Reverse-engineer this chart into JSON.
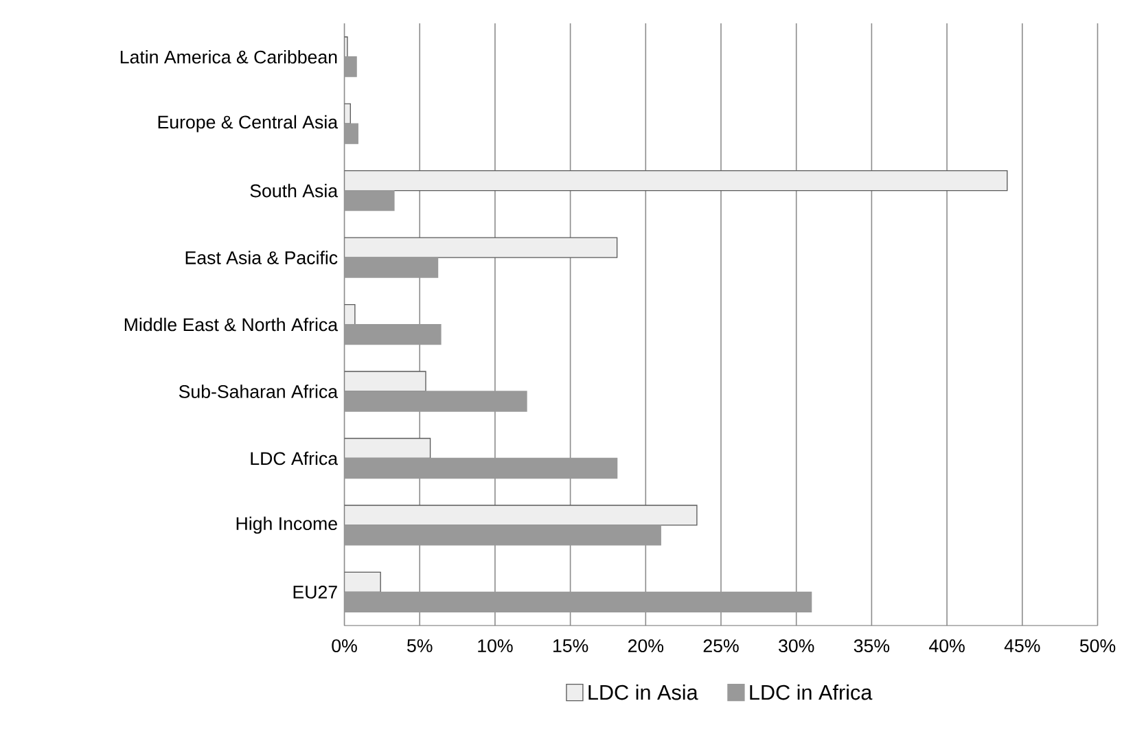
{
  "chart_data": {
    "type": "bar",
    "orientation": "horizontal",
    "categories": [
      "Latin America & Caribbean",
      "Europe & Central Asia",
      "South Asia",
      "East Asia & Pacific",
      "Middle East & North Africa",
      "Sub-Saharan Africa",
      "LDC Africa",
      "High Income",
      "EU27"
    ],
    "series": [
      {
        "name": "LDC in Asia",
        "color": "#eeeeee",
        "values": [
          0.2,
          0.4,
          44.0,
          18.1,
          0.7,
          5.4,
          5.7,
          23.4,
          2.4
        ]
      },
      {
        "name": "LDC in Africa",
        "color": "#999999",
        "values": [
          0.8,
          0.9,
          3.3,
          6.2,
          6.4,
          12.1,
          18.1,
          21.0,
          31.0
        ]
      }
    ],
    "xlim": [
      0,
      50
    ],
    "xticks": [
      {
        "value": 0,
        "label": "0%"
      },
      {
        "value": 5,
        "label": "5%"
      },
      {
        "value": 10,
        "label": "10%"
      },
      {
        "value": 15,
        "label": "15%"
      },
      {
        "value": 20,
        "label": "20%"
      },
      {
        "value": 25,
        "label": "25%"
      },
      {
        "value": 30,
        "label": "30%"
      },
      {
        "value": 35,
        "label": "35%"
      },
      {
        "value": 40,
        "label": "40%"
      },
      {
        "value": 45,
        "label": "45%"
      },
      {
        "value": 50,
        "label": "50%"
      }
    ],
    "grid": "x",
    "legend": "bottom"
  }
}
